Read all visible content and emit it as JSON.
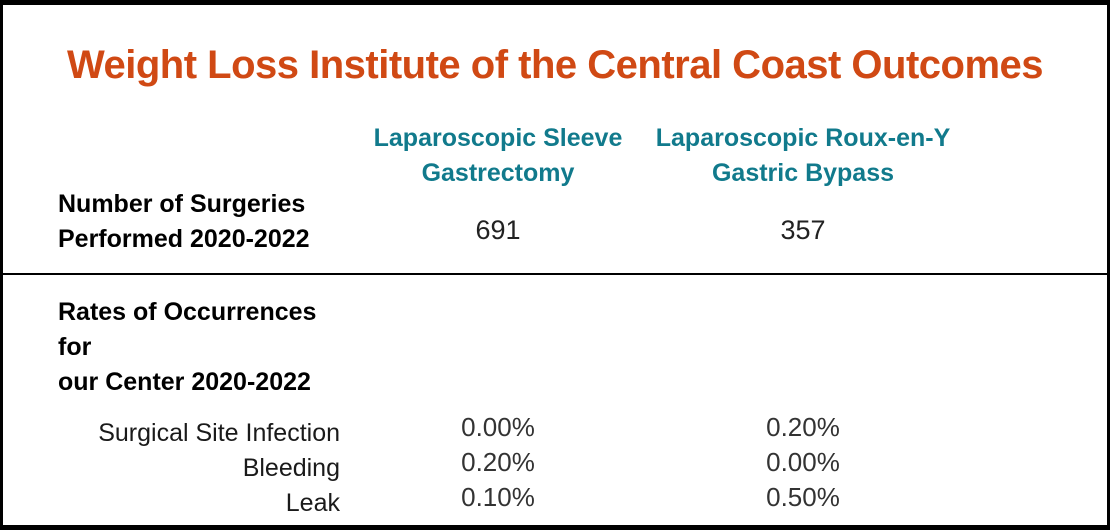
{
  "colors": {
    "accent_orange": "#d04914",
    "accent_teal": "#117a8c"
  },
  "header": {
    "title": "Weight Loss Institute of the Central Coast Outcomes"
  },
  "table": {
    "col1_lines": [
      "Laparoscopic Sleeve",
      "Gastrectomy"
    ],
    "col2_lines": [
      "Laparoscopic Roux-en-Y",
      "Gastric Bypass"
    ],
    "surgeries_label_lines": [
      "Number of Surgeries",
      "Performed 2020-2022"
    ],
    "surgeries_values": [
      "691",
      "357"
    ],
    "rates_label_lines": [
      "Rates of Occurrences for",
      "our Center 2020-2022"
    ],
    "rate_rows": [
      {
        "label": "Surgical Site Infection",
        "values": [
          "0.00%",
          "0.20%"
        ]
      },
      {
        "label": "Bleeding",
        "values": [
          "0.20%",
          "0.00%"
        ]
      },
      {
        "label": "Leak",
        "values": [
          "0.10%",
          "0.50%"
        ]
      }
    ]
  },
  "chart_data": {
    "type": "table",
    "title": "Weight Loss Institute of the Central Coast Outcomes",
    "columns": [
      "Laparoscopic Sleeve Gastrectomy",
      "Laparoscopic Roux-en-Y Gastric Bypass"
    ],
    "rows": [
      {
        "label": "Number of Surgeries Performed 2020-2022",
        "values": [
          "691",
          "357"
        ]
      },
      {
        "label": "Surgical Site Infection",
        "values": [
          "0.00%",
          "0.20%"
        ]
      },
      {
        "label": "Bleeding",
        "values": [
          "0.20%",
          "0.00%"
        ]
      },
      {
        "label": "Leak",
        "values": [
          "0.10%",
          "0.50%"
        ]
      }
    ],
    "section_label": "Rates of Occurrences for our Center 2020-2022",
    "layout": {
      "grid": false,
      "legend": false,
      "value_unit_top_row": "count",
      "value_unit_rate_rows": "percent"
    }
  }
}
